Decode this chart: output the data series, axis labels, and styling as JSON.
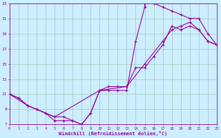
{
  "xlabel": "Windchill (Refroidissement éolien,°C)",
  "background_color": "#cceeff",
  "grid_color": "#aaccbb",
  "line_color": "#990099",
  "xlim": [
    0,
    23
  ],
  "ylim": [
    7,
    23
  ],
  "xticks": [
    0,
    1,
    2,
    3,
    4,
    5,
    6,
    7,
    8,
    9,
    10,
    11,
    12,
    13,
    14,
    15,
    16,
    17,
    18,
    19,
    20,
    21,
    22,
    23
  ],
  "yticks": [
    7,
    9,
    11,
    13,
    15,
    17,
    19,
    21,
    23
  ],
  "line1_x": [
    0,
    1,
    2,
    3,
    4,
    5,
    6,
    7,
    8,
    9,
    10,
    11,
    12,
    13,
    14,
    15,
    16,
    17,
    18,
    19,
    20,
    21,
    22,
    23
  ],
  "line1_y": [
    11,
    10.5,
    9.5,
    9,
    8.5,
    8,
    8,
    7.5,
    7,
    8.5,
    11.5,
    12,
    12,
    12,
    14.5,
    14.5,
    16,
    17.5,
    20,
    19.5,
    20,
    19.5,
    18,
    17.5
  ],
  "line2_x": [
    0,
    1,
    2,
    3,
    4,
    5,
    6,
    7,
    8,
    9,
    10,
    11,
    12,
    13,
    14,
    15,
    15,
    16,
    17,
    18,
    19,
    20,
    21,
    22,
    23
  ],
  "line2_y": [
    11,
    10.5,
    9.5,
    9,
    8.5,
    7.5,
    7.5,
    7.5,
    7,
    8.5,
    11.5,
    11.5,
    11.5,
    11.5,
    18,
    22.5,
    23,
    23,
    22.5,
    22,
    21.5,
    21,
    21,
    19,
    17.5
  ],
  "line3_x": [
    0,
    2,
    5,
    10,
    13,
    15,
    17,
    18,
    19,
    20,
    21,
    22,
    23
  ],
  "line3_y": [
    11,
    9.5,
    8,
    11.5,
    12,
    15,
    18,
    19.5,
    20,
    20.5,
    19.5,
    18,
    17.5
  ]
}
